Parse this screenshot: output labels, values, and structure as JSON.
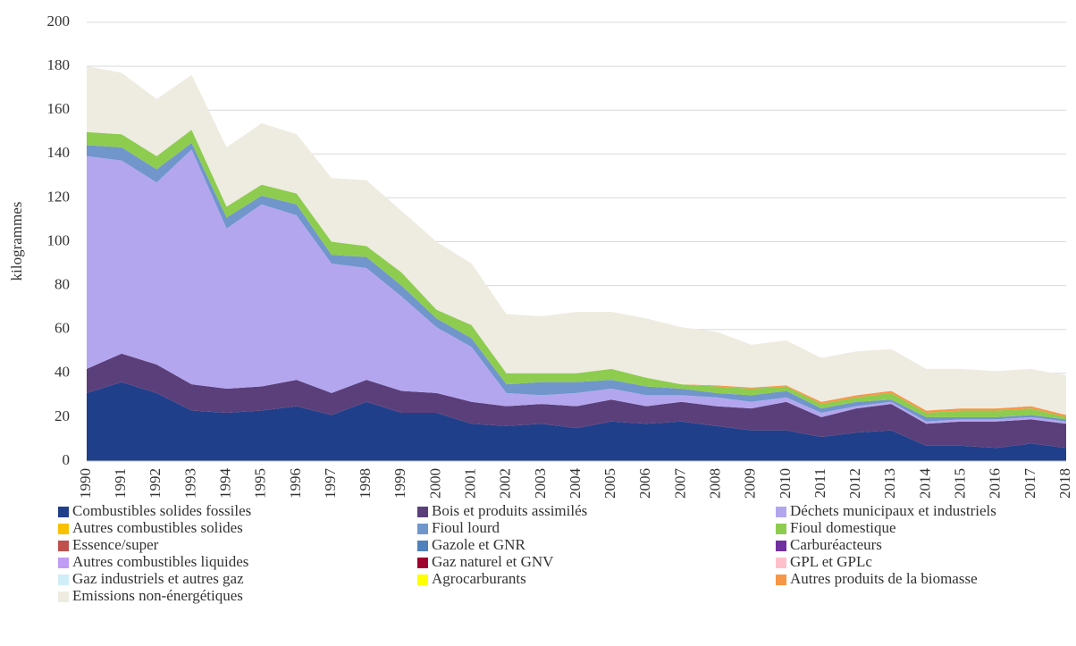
{
  "chart_data": {
    "type": "stacked_area",
    "y_label": "kilogrammes",
    "categories": [
      "1990",
      "1991",
      "1992",
      "1993",
      "1994",
      "1995",
      "1996",
      "1997",
      "1998",
      "1999",
      "2000",
      "2001",
      "2002",
      "2003",
      "2004",
      "2005",
      "2006",
      "2007",
      "2008",
      "2009",
      "2010",
      "2011",
      "2012",
      "2013",
      "2014",
      "2015",
      "2016",
      "2017",
      "2018"
    ],
    "ylim": [
      0,
      200
    ],
    "yticks": [
      0,
      20,
      40,
      60,
      80,
      100,
      120,
      140,
      160,
      180,
      200
    ],
    "grid": true,
    "legend": "bottom",
    "series": [
      {
        "name": "Combustibles solides fossiles",
        "color": "#203f8a",
        "values": [
          31,
          36,
          31,
          23,
          22,
          23,
          25,
          21,
          27,
          22,
          22,
          17,
          16,
          17,
          15,
          18,
          17,
          18,
          16,
          14,
          14,
          11,
          13,
          14,
          7,
          7,
          6,
          8,
          6
        ]
      },
      {
        "name": "Bois et produits assimilés",
        "color": "#5b3f7a",
        "values": [
          11,
          13,
          13,
          12,
          11,
          11,
          12,
          10,
          10,
          10,
          9,
          10,
          9,
          9,
          10,
          10,
          8,
          9,
          9,
          10,
          13,
          9,
          11,
          12,
          10,
          11,
          12,
          11,
          11
        ]
      },
      {
        "name": "Déchets municipaux et industriels",
        "color": "#b4a6ee",
        "values": [
          97,
          88,
          83,
          107,
          73,
          83,
          75,
          59,
          51,
          43,
          30,
          25,
          6,
          4,
          6,
          5,
          5,
          3,
          4,
          3,
          2,
          2,
          1,
          1,
          1,
          1,
          1,
          1,
          1
        ]
      },
      {
        "name": "Autres combustibles solides",
        "color": "#f9c000",
        "values": [
          0,
          0,
          0,
          0,
          0,
          0,
          0,
          0,
          0,
          0,
          0,
          0,
          0,
          0,
          0,
          0,
          0,
          0,
          0,
          0,
          0,
          0,
          0,
          0,
          0,
          0,
          0,
          0,
          0
        ]
      },
      {
        "name": "Fioul lourd",
        "color": "#7096cc",
        "values": [
          5,
          6,
          6,
          3,
          5,
          4,
          5,
          4,
          5,
          5,
          4,
          4,
          4,
          6,
          5,
          4,
          4,
          3,
          2,
          3,
          3,
          2,
          2,
          1,
          2,
          1,
          1,
          1,
          1
        ]
      },
      {
        "name": "Fioul domestique",
        "color": "#8ecc50",
        "values": [
          6,
          6,
          6,
          6,
          5,
          5,
          5,
          6,
          5,
          6,
          4,
          6,
          5,
          4,
          4,
          5,
          4,
          2,
          3,
          3,
          2,
          2,
          2,
          3,
          2,
          3,
          3,
          3,
          1
        ]
      },
      {
        "name": "Essence/super",
        "color": "#c0504d",
        "values": [
          0,
          0,
          0,
          0,
          0,
          0,
          0,
          0,
          0,
          0,
          0,
          0,
          0,
          0,
          0,
          0,
          0,
          0,
          0,
          0,
          0,
          0,
          0,
          0,
          0,
          0,
          0,
          0,
          0
        ]
      },
      {
        "name": "Gazole et GNR",
        "color": "#4f81bd",
        "values": [
          0,
          0,
          0,
          0,
          0,
          0,
          0,
          0,
          0,
          0,
          0,
          0,
          0,
          0,
          0,
          0,
          0,
          0,
          0,
          0,
          0,
          0,
          0,
          0,
          0,
          0,
          0,
          0,
          0
        ]
      },
      {
        "name": "Carburéacteurs",
        "color": "#7030a0",
        "values": [
          0,
          0,
          0,
          0,
          0,
          0,
          0,
          0,
          0,
          0,
          0,
          0,
          0,
          0,
          0,
          0,
          0,
          0,
          0,
          0,
          0,
          0,
          0,
          0,
          0,
          0,
          0,
          0,
          0
        ]
      },
      {
        "name": "Autres combustibles liquides",
        "color": "#c09cf4",
        "values": [
          0,
          0,
          0,
          0,
          0,
          0,
          0,
          0,
          0,
          0,
          0,
          0,
          0,
          0,
          0,
          0,
          0,
          0,
          0,
          0,
          0,
          0,
          0,
          0,
          0,
          0,
          0,
          0,
          0
        ]
      },
      {
        "name": "Gaz naturel et GNV",
        "color": "#a0002e",
        "values": [
          0,
          0,
          0,
          0,
          0,
          0,
          0,
          0,
          0,
          0,
          0,
          0,
          0,
          0,
          0,
          0,
          0,
          0,
          0,
          0,
          0,
          0,
          0,
          0,
          0,
          0,
          0,
          0,
          0
        ]
      },
      {
        "name": "GPL et GPLc",
        "color": "#ffc0cb",
        "values": [
          0,
          0,
          0,
          0,
          0,
          0,
          0,
          0,
          0,
          0,
          0,
          0,
          0,
          0,
          0,
          0,
          0,
          0,
          0,
          0,
          0,
          0,
          0,
          0,
          0,
          0,
          0,
          0,
          0
        ]
      },
      {
        "name": "Gaz industriels et autres gaz",
        "color": "#d0eef8",
        "values": [
          0,
          0,
          0,
          0,
          0,
          0,
          0,
          0,
          0,
          0,
          0,
          0,
          0,
          0,
          0,
          0,
          0,
          0,
          0,
          0,
          0,
          0,
          0,
          0,
          0,
          0,
          0,
          0,
          0
        ]
      },
      {
        "name": "Agrocarburants",
        "color": "#ffff00",
        "values": [
          0,
          0,
          0,
          0,
          0,
          0,
          0,
          0,
          0,
          0,
          0,
          0,
          0,
          0,
          0,
          0,
          0,
          0,
          0,
          0,
          0,
          0,
          0,
          0,
          0,
          0,
          0,
          0,
          0
        ]
      },
      {
        "name": "Autres produits de la biomasse",
        "color": "#f79646",
        "values": [
          0,
          0,
          0,
          0,
          0,
          0,
          0,
          0,
          0,
          0,
          0,
          0,
          0,
          0,
          0,
          0,
          0,
          0,
          0.5,
          0.5,
          0.5,
          1,
          1,
          1,
          1,
          1,
          1,
          1,
          1
        ]
      },
      {
        "name": "Emissions non-énergétiques",
        "color": "#eeebe0",
        "values": [
          30,
          28,
          26,
          25,
          27,
          28,
          27,
          29,
          30,
          28,
          31,
          28,
          27,
          26,
          28,
          26,
          27,
          26,
          24.5,
          19.5,
          20.5,
          20,
          20,
          19,
          19,
          18,
          17,
          17,
          18
        ]
      }
    ]
  }
}
